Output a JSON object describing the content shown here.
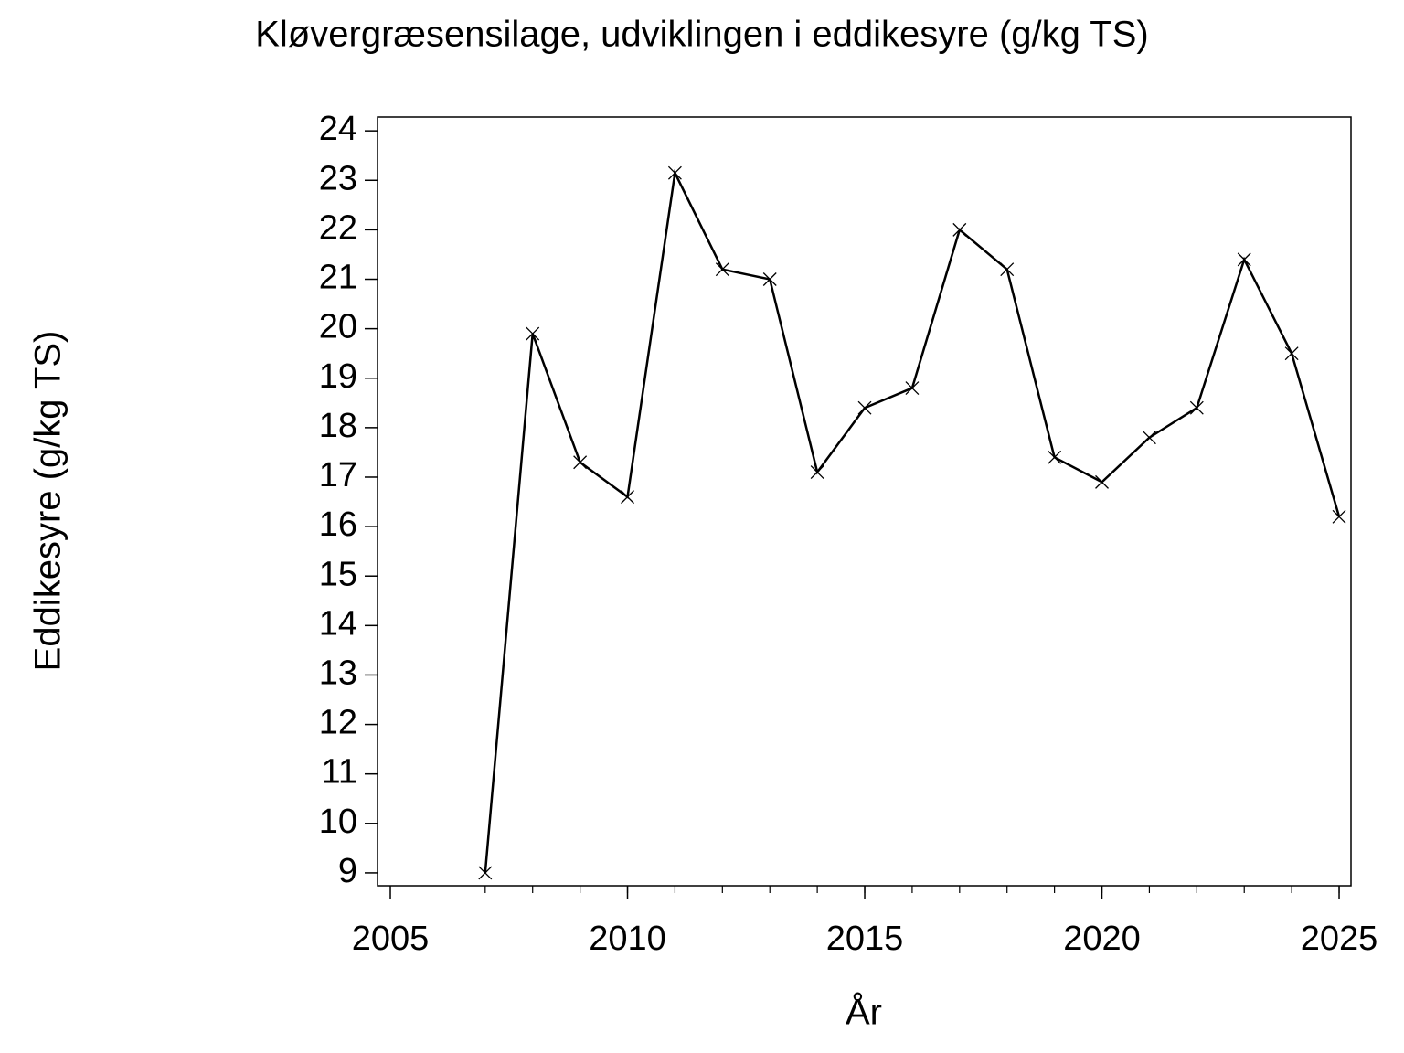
{
  "chart_data": {
    "type": "line",
    "title": "Kløvergræsensilage,  udviklingen  i  eddikesyre  (g/kg  TS)",
    "x_label": "År",
    "y_label": "Eddikesyre  (g/kg  TS)",
    "x": [
      2007,
      2008,
      2009,
      2010,
      2011,
      2012,
      2013,
      2014,
      2015,
      2016,
      2017,
      2018,
      2019,
      2020,
      2021,
      2022,
      2023,
      2024,
      2025
    ],
    "series": [
      {
        "color": "#000000",
        "marker": "x",
        "values": [
          9.0,
          19.9,
          17.3,
          16.6,
          23.15,
          21.2,
          21.0,
          17.1,
          18.4,
          18.8,
          22.0,
          21.2,
          17.4,
          16.9,
          17.8,
          18.4,
          21.4,
          19.5,
          16.2
        ]
      }
    ],
    "xlim": [
      2004.73,
      2025.25
    ],
    "xticks": [
      2005,
      2010,
      2015,
      2020,
      2025
    ],
    "ylim": [
      8.74,
      24.28
    ],
    "yticks": [
      9,
      10,
      11,
      12,
      13,
      14,
      15,
      16,
      17,
      18,
      19,
      20,
      21,
      22,
      23,
      24
    ]
  }
}
